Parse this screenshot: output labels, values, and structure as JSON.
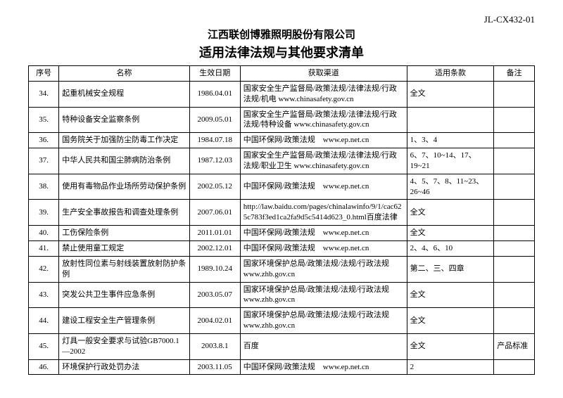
{
  "doc_code": "JL-CX432-01",
  "company": "江西联创博雅照明股份有限公司",
  "title": "适用法律法规与其他要求清单",
  "columns": {
    "idx": "序号",
    "name": "名称",
    "date": "生效日期",
    "source": "获取渠道",
    "clause": "适用条款",
    "note": "备注"
  },
  "rows": [
    {
      "idx": "34.",
      "name": "起重机械安全规程",
      "date": "1986.04.01",
      "source": "国家安全生产监督局/政策法规/法律法规/行政法规/机电 www.chinasafety.gov.cn",
      "clause": "全文",
      "note": ""
    },
    {
      "idx": "35.",
      "name": "特种设备安全监察条例",
      "date": "2009.05.01",
      "source": "国家安全生产监督局/政策法规/法律法规/行政法规/特种设备 www.chinasafety.gov.cn",
      "clause": "",
      "note": ""
    },
    {
      "idx": "36.",
      "name": "国务院关于加强防尘防毒工作决定",
      "date": "1984.07.18",
      "source": "中国环保网/政策法规　www.ep.net.cn",
      "clause": "1、3、4",
      "note": ""
    },
    {
      "idx": "37.",
      "name": "中华人民共和国尘肺病防治条例",
      "date": "1987.12.03",
      "source": "国家安全生产监督局/政策法规/法律法规/行政法规/职业卫生 www.chinasafety.gov.cn",
      "clause": "6、7、10~14、17、19~21",
      "note": ""
    },
    {
      "idx": "38.",
      "name": "使用有毒物品作业场所劳动保护条例",
      "date": "2002.05.12",
      "source": "中国环保网/政策法规　www.ep.net.cn",
      "clause": "4、5、7、8、11~23、26~46",
      "note": ""
    },
    {
      "idx": "39.",
      "name": "生产安全事故报告和调查处理条例",
      "date": "2007.06.01",
      "source": "http://law.baidu.com/pages/chinalawinfo/9/1/cac625c783f3ed1ca2fa9d5c5414d623_0.html百度法律",
      "clause": "全文",
      "note": ""
    },
    {
      "idx": "40.",
      "name": "工伤保险条例",
      "date": "2011.01.01",
      "source": "中国环保网/政策法规　www.ep.net.cn",
      "clause": "全文",
      "note": ""
    },
    {
      "idx": "41.",
      "name": "禁止使用童工规定",
      "date": "2002.12.01",
      "source": "中国环保网/政策法规　www.ep.net.cn",
      "clause": "2、4、6、10",
      "note": ""
    },
    {
      "idx": "42.",
      "name": "放射性同位素与射线装置放射防护条例",
      "date": "1989.10.24",
      "source": "国家环境保护总局/政策法规/法规/行政法规　www.zhb.gov.cn",
      "clause": "第二、三、四章",
      "note": ""
    },
    {
      "idx": "43.",
      "name": "突发公共卫生事件应急条例",
      "date": "2003.05.07",
      "source": "国家环境保护总局/政策法规/法规/行政法规　www.zhb.gov.cn",
      "clause": "全文",
      "note": ""
    },
    {
      "idx": "44.",
      "name": "建设工程安全生产管理条例",
      "date": "2004.02.01",
      "source": "国家环境保护总局/政策法规/法规/行政法规　www.zhb.gov.cn",
      "clause": "全文",
      "note": ""
    },
    {
      "idx": "45.",
      "name": "灯具一般安全要求与试验GB7000.1—2002",
      "date": "2003.8.1",
      "source": "百度",
      "clause": "全文",
      "note": "产品标准"
    },
    {
      "idx": "46.",
      "name": "环境保护行政处罚办法",
      "date": "2003.11.05",
      "source": "中国环保网/政策法规　www.ep.net.cn",
      "clause": "2",
      "note": ""
    }
  ]
}
